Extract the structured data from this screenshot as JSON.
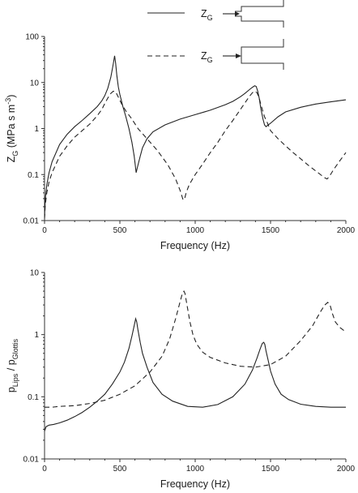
{
  "legend": {
    "solid_label_main": "Z",
    "solid_label_sub": "G",
    "dashed_label_main": "Z",
    "dashed_label_sub": "G"
  },
  "chart_data": [
    {
      "type": "line",
      "scale_y": "log",
      "xlabel": "Frequency (Hz)",
      "ylabel_parts": [
        "Z",
        "G",
        " (MPa s m",
        "-3",
        ")"
      ],
      "xlim": [
        0,
        2000
      ],
      "ylim": [
        0.01,
        100
      ],
      "x_ticks": [
        0,
        500,
        1000,
        1500,
        2000
      ],
      "x_tick_labels": [
        "0",
        "500",
        "1000",
        "1500",
        "2000"
      ],
      "y_ticks": [
        0.01,
        0.1,
        1,
        10,
        100
      ],
      "y_tick_labels": [
        "0.01",
        "0.1",
        "1",
        "10",
        "100"
      ],
      "legend_placement": "top-right",
      "series": [
        {
          "style": "solid",
          "x": [
            0,
            5,
            15,
            30,
            50,
            100,
            150,
            200,
            250,
            300,
            350,
            380,
            400,
            420,
            440,
            455,
            465,
            472,
            480,
            490,
            500,
            520,
            540,
            560,
            580,
            595,
            608,
            620,
            635,
            650,
            680,
            720,
            800,
            900,
            1000,
            1100,
            1200,
            1250,
            1300,
            1330,
            1360,
            1380,
            1395,
            1405,
            1415,
            1425,
            1435,
            1450,
            1460,
            1470,
            1500,
            1550,
            1600,
            1700,
            1800,
            1900,
            2000
          ],
          "y": [
            0.012,
            0.03,
            0.06,
            0.11,
            0.19,
            0.45,
            0.75,
            1.1,
            1.5,
            2.1,
            3.0,
            4.0,
            5.2,
            7.5,
            13,
            24,
            38,
            26,
            14,
            8,
            5.5,
            3.0,
            1.8,
            1.0,
            0.5,
            0.25,
            0.11,
            0.16,
            0.25,
            0.38,
            0.6,
            0.85,
            1.2,
            1.6,
            2.0,
            2.5,
            3.3,
            3.9,
            4.9,
            5.8,
            7.0,
            7.9,
            8.5,
            8.2,
            6.5,
            4.5,
            2.8,
            1.6,
            1.2,
            1.1,
            1.3,
            1.8,
            2.3,
            2.9,
            3.4,
            3.8,
            4.2
          ]
        },
        {
          "style": "dashed",
          "x": [
            0,
            5,
            15,
            30,
            50,
            100,
            150,
            200,
            250,
            300,
            350,
            380,
            400,
            420,
            440,
            455,
            465,
            475,
            490,
            510,
            540,
            580,
            620,
            680,
            750,
            820,
            870,
            900,
            920,
            930,
            940,
            960,
            1000,
            1050,
            1100,
            1150,
            1200,
            1250,
            1300,
            1330,
            1360,
            1380,
            1395,
            1410,
            1425,
            1440,
            1460,
            1480,
            1500,
            1550,
            1600,
            1650,
            1700,
            1750,
            1800,
            1840,
            1860,
            1875,
            1890,
            1920,
            1960,
            2000
          ],
          "y": [
            0.011,
            0.022,
            0.04,
            0.07,
            0.11,
            0.25,
            0.42,
            0.65,
            0.9,
            1.25,
            1.9,
            2.6,
            3.5,
            4.6,
            5.8,
            6.4,
            6.5,
            6.0,
            4.8,
            3.5,
            2.4,
            1.6,
            1.0,
            0.6,
            0.33,
            0.16,
            0.08,
            0.045,
            0.028,
            0.03,
            0.04,
            0.06,
            0.1,
            0.17,
            0.3,
            0.5,
            0.9,
            1.5,
            2.6,
            3.6,
            5.0,
            6.0,
            6.5,
            6.0,
            4.5,
            3.0,
            1.8,
            1.3,
            0.9,
            0.6,
            0.42,
            0.3,
            0.22,
            0.16,
            0.12,
            0.095,
            0.085,
            0.08,
            0.09,
            0.13,
            0.2,
            0.3
          ]
        }
      ]
    },
    {
      "type": "line",
      "scale_y": "log",
      "xlabel": "Frequency (Hz)",
      "ylabel_parts": [
        "p",
        "Lips",
        " / p",
        "Glottis"
      ],
      "xlim": [
        0,
        2000
      ],
      "ylim": [
        0.01,
        10
      ],
      "x_ticks": [
        0,
        500,
        1000,
        1500,
        2000
      ],
      "x_tick_labels": [
        "0",
        "500",
        "1000",
        "1500",
        "2000"
      ],
      "y_ticks": [
        0.01,
        0.1,
        1,
        10
      ],
      "y_tick_labels": [
        "0.01",
        "0.1",
        "1",
        "10"
      ],
      "series": [
        {
          "style": "solid",
          "x": [
            0,
            10,
            30,
            60,
            100,
            150,
            200,
            250,
            300,
            350,
            400,
            450,
            500,
            530,
            560,
            580,
            595,
            605,
            612,
            620,
            635,
            650,
            680,
            720,
            780,
            850,
            950,
            1050,
            1150,
            1250,
            1330,
            1380,
            1410,
            1430,
            1445,
            1455,
            1462,
            1470,
            1485,
            1500,
            1530,
            1570,
            1620,
            1700,
            1800,
            1900,
            2000
          ],
          "y": [
            0.028,
            0.033,
            0.035,
            0.036,
            0.038,
            0.042,
            0.048,
            0.056,
            0.068,
            0.085,
            0.11,
            0.16,
            0.25,
            0.36,
            0.6,
            0.95,
            1.4,
            1.8,
            1.6,
            1.2,
            0.75,
            0.5,
            0.3,
            0.17,
            0.11,
            0.085,
            0.07,
            0.068,
            0.075,
            0.1,
            0.16,
            0.27,
            0.42,
            0.58,
            0.72,
            0.75,
            0.7,
            0.55,
            0.38,
            0.26,
            0.16,
            0.11,
            0.09,
            0.076,
            0.07,
            0.068,
            0.068
          ]
        },
        {
          "style": "dashed",
          "x": [
            0,
            50,
            100,
            200,
            300,
            400,
            500,
            600,
            700,
            780,
            830,
            870,
            900,
            915,
            925,
            932,
            940,
            950,
            965,
            985,
            1010,
            1050,
            1100,
            1200,
            1300,
            1400,
            1500,
            1600,
            1700,
            1780,
            1830,
            1860,
            1880,
            1895,
            1910,
            1930,
            1960,
            2000
          ],
          "y": [
            0.068,
            0.068,
            0.07,
            0.072,
            0.078,
            0.088,
            0.11,
            0.15,
            0.25,
            0.45,
            0.85,
            1.8,
            3.4,
            4.6,
            5.0,
            4.6,
            3.6,
            2.6,
            1.6,
            1.0,
            0.7,
            0.52,
            0.43,
            0.35,
            0.31,
            0.3,
            0.33,
            0.45,
            0.8,
            1.4,
            2.3,
            3.0,
            3.3,
            3.0,
            2.2,
            1.6,
            1.3,
            1.1
          ]
        }
      ]
    }
  ]
}
